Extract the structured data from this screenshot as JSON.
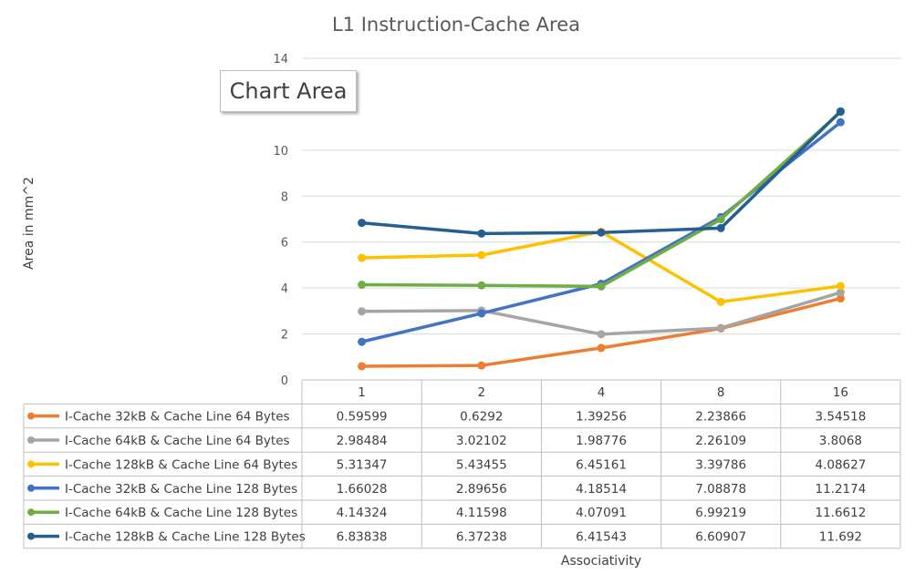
{
  "chart_data": {
    "type": "line",
    "title": "L1 Instruction-Cache Area",
    "xlabel": "Associativity",
    "ylabel": "Area in mm^2",
    "categories": [
      "1",
      "2",
      "4",
      "8",
      "16"
    ],
    "ylim": [
      0,
      14
    ],
    "yticks": [
      0,
      2,
      4,
      6,
      8,
      10,
      14
    ],
    "grid": true,
    "legend": "data-table",
    "series": [
      {
        "name": "I-Cache 32kB & Cache Line 64 Bytes",
        "color": "#ED7D31",
        "values": [
          0.59599,
          0.6292,
          1.39256,
          2.23866,
          3.54518
        ],
        "labels": [
          "0.59599",
          "0.6292",
          "1.39256",
          "2.23866",
          "3.54518"
        ]
      },
      {
        "name": "I-Cache 64kB & Cache Line 64 Bytes",
        "color": "#A5A5A5",
        "values": [
          2.98484,
          3.02102,
          1.98776,
          2.26109,
          3.8068
        ],
        "labels": [
          "2.98484",
          "3.02102",
          "1.98776",
          "2.26109",
          "3.8068"
        ]
      },
      {
        "name": "I-Cache 128kB & Cache Line 64 Bytes",
        "color": "#FFC000",
        "values": [
          5.31347,
          5.43455,
          6.45161,
          3.39786,
          4.08627
        ],
        "labels": [
          "5.31347",
          "5.43455",
          "6.45161",
          "3.39786",
          "4.08627"
        ]
      },
      {
        "name": "I-Cache 32kB & Cache Line 128 Bytes",
        "color": "#4472C4",
        "values": [
          1.66028,
          2.89656,
          4.18514,
          7.08878,
          11.2174
        ],
        "labels": [
          "1.66028",
          "2.89656",
          "4.18514",
          "7.08878",
          "11.2174"
        ]
      },
      {
        "name": "I-Cache 64kB & Cache Line 128 Bytes",
        "color": "#70AD47",
        "values": [
          4.14324,
          4.11598,
          4.07091,
          6.99219,
          11.6612
        ],
        "labels": [
          "4.14324",
          "4.11598",
          "4.07091",
          "6.99219",
          "11.6612"
        ]
      },
      {
        "name": "I-Cache 128kB & Cache Line 128 Bytes",
        "color": "#255E91",
        "values": [
          6.83838,
          6.37238,
          6.41543,
          6.60907,
          11.692
        ],
        "labels": [
          "6.83838",
          "6.37238",
          "6.41543",
          "6.60907",
          "11.692"
        ]
      }
    ]
  },
  "tooltip": {
    "text": "Chart Area"
  }
}
